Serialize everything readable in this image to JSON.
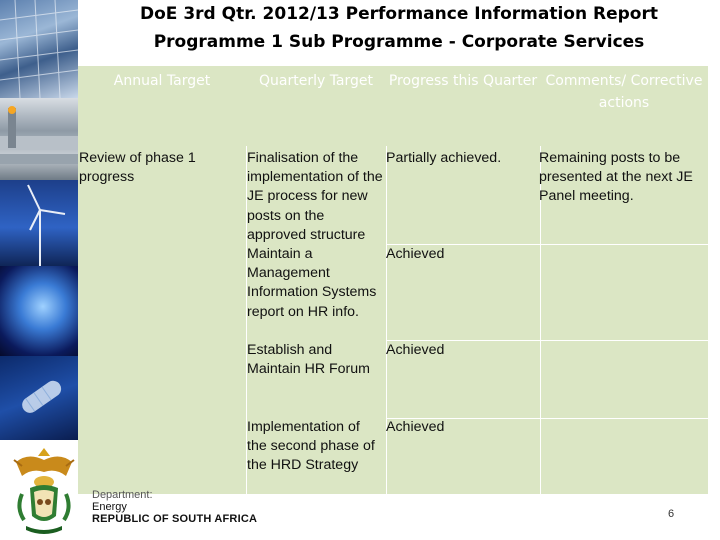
{
  "title": {
    "line1": "DoE 3rd Qtr. 2012/13 Performance Information Report",
    "line2": "Programme 1 Sub Programme - Corporate Services"
  },
  "table": {
    "headers": {
      "annual_target": "Annual Target",
      "quarterly_target": "Quarterly Target",
      "progress": "Progress this Quarter",
      "comments": "Comments/ Corrective actions"
    },
    "annual_target": "Review of phase 1 progress",
    "rows": [
      {
        "quarterly_target": "Finalisation of the implementation of the JE process for new posts on the approved structure",
        "progress": "Partially achieved.",
        "comments": "Remaining posts to be presented at the next JE Panel meeting."
      },
      {
        "quarterly_target": "Maintain a Management Information Systems report on HR info.",
        "progress": "Achieved",
        "comments": ""
      },
      {
        "quarterly_target": "Establish and Maintain HR Forum",
        "progress": "Achieved",
        "comments": ""
      },
      {
        "quarterly_target": "Implementation of the second phase of the HRD Strategy",
        "progress": "Achieved",
        "comments": ""
      }
    ]
  },
  "footer": {
    "dept_line1": "Department:",
    "dept_line2": "Energy",
    "dept_line3": "REPUBLIC OF SOUTH AFRICA",
    "page_number": "6"
  },
  "colors": {
    "table_fill": "#dbe6c4",
    "header_text": "#ffffff",
    "photo_blue": "#1f4fa8"
  }
}
